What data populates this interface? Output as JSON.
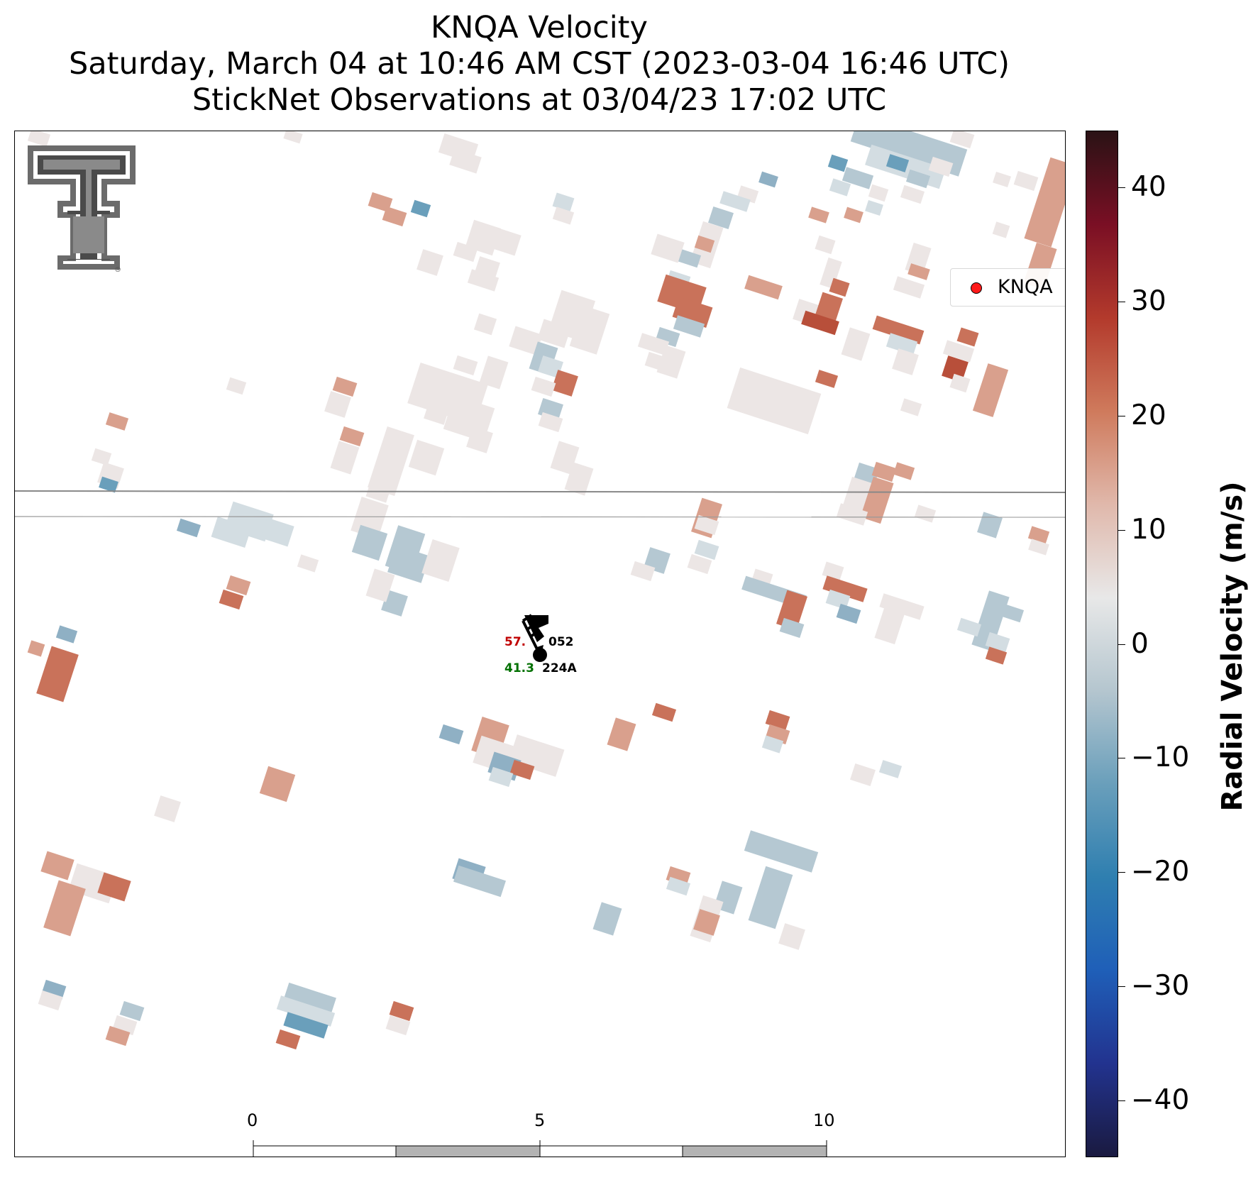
{
  "title": {
    "line1": "KNQA Velocity",
    "line2": "Saturday, March 04 at 10:46 AM CST (2023-03-04 16:46 UTC)",
    "line3": "StickNet Observations at 03/04/23 17:02 UTC"
  },
  "legend": {
    "label": "KNQA",
    "marker_color": "#ff1a1a"
  },
  "scale_bar": {
    "labels": [
      "0",
      "5",
      "10"
    ],
    "unit": "km"
  },
  "station": {
    "temp": "57.",
    "dewpoint": "41.3",
    "code_upper": "052",
    "code_lower": "224A",
    "temp_color": "#c00000",
    "dew_color": "#007000"
  },
  "colorbar": {
    "title": "Radial Velocity (m/s)",
    "ticks": [
      "40",
      "30",
      "20",
      "10",
      "0",
      "−10",
      "−20",
      "−30",
      "−40"
    ],
    "range": [
      -45,
      45
    ],
    "colors": [
      "#2a1215",
      "#7a0f24",
      "#b33a2c",
      "#cf7a5c",
      "#e0b8ab",
      "#e8e8e8",
      "#b5c6cf",
      "#6a9fbb",
      "#2f7fb0",
      "#1f5fb8",
      "#22338f",
      "#1a1a40"
    ]
  },
  "logo": {
    "name": "Texas Tech double-T logo"
  }
}
